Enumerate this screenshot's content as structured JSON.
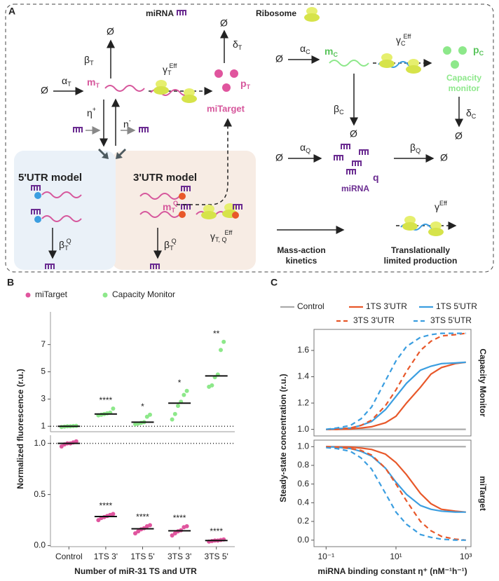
{
  "panels": [
    "A",
    "B",
    "C"
  ],
  "diagram": {
    "null_symbol": "Ø",
    "legend_mirna": "miRNA",
    "legend_ribosome": "Ribosome",
    "miTarget": "miTarget",
    "capacity_monitor": [
      "Capacity",
      "monitor"
    ],
    "utr5_model": "5'UTR model",
    "utr3_model": "3'UTR model",
    "mirna_label": "miRNA",
    "mass_action": [
      "Mass-action",
      "kinetics"
    ],
    "translation_limited": [
      "Translationally",
      "limited production"
    ],
    "symbols": {
      "alpha_T": {
        "base": "α",
        "sub": "T"
      },
      "beta_T": {
        "base": "β",
        "sub": "T"
      },
      "m_T": {
        "base": "m",
        "sub": "T"
      },
      "gamma_T_eff": {
        "base": "γ",
        "sub": "T",
        "sup": "Eff"
      },
      "delta_T": {
        "base": "δ",
        "sub": "T"
      },
      "p_T": {
        "base": "p",
        "sub": "T"
      },
      "eta_plus": {
        "base": "η",
        "sup": "+"
      },
      "eta_minus": {
        "base": "η",
        "sup": "-"
      },
      "m_TQ": {
        "base": "m",
        "sub": "T",
        "sup": "Q"
      },
      "beta_TQ": {
        "base": "β",
        "sub": "T",
        "sup": "Q"
      },
      "gamma_TQ_eff": {
        "base": "γ",
        "sub": "T, Q",
        "sup": "Eff"
      },
      "alpha_C": {
        "base": "α",
        "sub": "C"
      },
      "m_C": {
        "base": "m",
        "sub": "C"
      },
      "gamma_C_eff": {
        "base": "γ",
        "sub": "C",
        "sup": "Eff"
      },
      "p_C": {
        "base": "p",
        "sub": "C"
      },
      "beta_C": {
        "base": "β",
        "sub": "C"
      },
      "delta_C": {
        "base": "δ",
        "sub": "C"
      },
      "alpha_Q": {
        "base": "α",
        "sub": "Q"
      },
      "beta_Q": {
        "base": "β",
        "sub": "Q"
      },
      "q": {
        "base": "q"
      },
      "gamma_eff": {
        "base": "γ",
        "sup": "Eff"
      }
    }
  },
  "chart_data": [
    {
      "type": "strip",
      "y_label": "Normalized fluorescence (r.u.)",
      "ylim": [
        0.6,
        9.4
      ],
      "yticks": [
        1,
        3,
        5,
        7
      ],
      "hline": 1,
      "series": [
        {
          "name": "Capacity Monitor",
          "color": "#8de88a",
          "replicates": [
            [
              0.95,
              0.97,
              1.0,
              1.0,
              1.02,
              1.03
            ],
            [
              1.8,
              1.85,
              1.9,
              1.95,
              2.0,
              2.3
            ],
            [
              1.15,
              1.2,
              1.25,
              1.3,
              1.7,
              1.85
            ],
            [
              1.5,
              1.9,
              2.5,
              2.8,
              3.3,
              3.6
            ],
            [
              3.9,
              4.0,
              4.6,
              4.8,
              6.6,
              7.2
            ]
          ],
          "medians": [
            1.0,
            1.9,
            1.3,
            2.7,
            4.7
          ]
        }
      ],
      "annotations": [
        null,
        "****",
        "*",
        "*",
        "**"
      ]
    },
    {
      "type": "strip",
      "x_label": "Number of miR-31 TS and UTR",
      "categories": [
        "Control",
        "1TS 3'",
        "1TS 5'",
        "3TS 3'",
        "3TS 5'"
      ],
      "ylim": [
        -0.01,
        1.08
      ],
      "yticks": [
        {
          "value": 0,
          "label": "0.0"
        },
        {
          "value": 0.5,
          "label": "0.5"
        },
        {
          "value": 1,
          "label": "1.0"
        }
      ],
      "hline": 1,
      "series": [
        {
          "name": "miTarget",
          "color": "#e0559e",
          "replicates": [
            [
              0.97,
              0.99,
              1.0,
              1.0,
              1.01,
              1.02
            ],
            [
              0.25,
              0.27,
              0.28,
              0.29,
              0.3,
              0.31
            ],
            [
              0.12,
              0.14,
              0.16,
              0.17,
              0.19,
              0.2
            ],
            [
              0.1,
              0.12,
              0.14,
              0.15,
              0.18,
              0.19
            ],
            [
              0.04,
              0.045,
              0.05,
              0.05,
              0.055,
              0.06
            ]
          ],
          "medians": [
            1.0,
            0.285,
            0.165,
            0.145,
            0.05
          ]
        }
      ],
      "annotations": [
        null,
        "****",
        "****",
        "****",
        "****"
      ]
    },
    {
      "type": "line",
      "log_x": true,
      "y_label": "Steady-state concentration (r.u.)",
      "strip_label": "Capacity Monitor",
      "x": [
        0.1,
        0.2,
        0.5,
        1,
        2,
        5,
        10,
        20,
        50,
        100,
        200,
        500,
        1000
      ],
      "xlim": [
        0.045,
        1400
      ],
      "ylim": [
        0.95,
        1.76
      ],
      "yticks": [
        {
          "value": 1,
          "label": "1.0"
        },
        {
          "value": 1.2,
          "label": "1.2"
        },
        {
          "value": 1.4,
          "label": "1.4"
        },
        {
          "value": 1.6,
          "label": "1.6"
        }
      ],
      "series": [
        {
          "name": "Control",
          "color": "#aaaaaa",
          "style": "solid",
          "values": [
            1,
            1,
            1,
            1,
            1,
            1,
            1,
            1,
            1,
            1,
            1,
            1,
            1
          ]
        },
        {
          "name": "1TS 3'UTR",
          "color": "#e8582a",
          "style": "solid",
          "values": [
            1.0,
            1.0,
            1.003,
            1.01,
            1.02,
            1.05,
            1.1,
            1.2,
            1.32,
            1.42,
            1.47,
            1.5,
            1.51
          ]
        },
        {
          "name": "1TS 5'UTR",
          "color": "#3b9ee0",
          "style": "solid",
          "values": [
            1.0,
            1.005,
            1.01,
            1.03,
            1.06,
            1.15,
            1.25,
            1.35,
            1.45,
            1.48,
            1.5,
            1.505,
            1.51
          ]
        },
        {
          "name": "3TS 3'UTR",
          "color": "#e8582a",
          "style": "dashed",
          "values": [
            1.0,
            1.0,
            1.01,
            1.03,
            1.07,
            1.18,
            1.3,
            1.44,
            1.6,
            1.67,
            1.71,
            1.72,
            1.73
          ]
        },
        {
          "name": "3TS 5'UTR",
          "color": "#3b9ee0",
          "style": "dashed",
          "values": [
            1.0,
            1.01,
            1.03,
            1.08,
            1.17,
            1.37,
            1.52,
            1.63,
            1.7,
            1.72,
            1.73,
            1.73,
            1.73
          ]
        }
      ]
    },
    {
      "type": "line",
      "log_x": true,
      "x_label": "miRNA binding constant η⁺ (nM⁻¹h⁻¹)",
      "strip_label": "miTarget",
      "x": [
        0.1,
        0.2,
        0.5,
        1,
        2,
        5,
        10,
        20,
        50,
        100,
        200,
        500,
        1000
      ],
      "xlim": [
        0.045,
        1400
      ],
      "ylim": [
        -0.07,
        1.07
      ],
      "xticks": [
        {
          "value": 0.1,
          "label": "10⁻¹"
        },
        {
          "value": 10,
          "label": "10¹"
        },
        {
          "value": 1000,
          "label": "10³"
        }
      ],
      "yticks": [
        {
          "value": 0,
          "label": "0.0"
        },
        {
          "value": 0.2,
          "label": "0.2"
        },
        {
          "value": 0.4,
          "label": "0.4"
        },
        {
          "value": 0.6,
          "label": "0.6"
        },
        {
          "value": 0.8,
          "label": "0.8"
        },
        {
          "value": 1,
          "label": "1.0"
        }
      ],
      "series": [
        {
          "name": "Control",
          "color": "#aaaaaa",
          "style": "solid",
          "values": [
            1,
            1,
            1,
            1,
            1,
            1,
            1,
            1,
            1,
            1,
            1,
            1,
            1
          ]
        },
        {
          "name": "1TS 3'UTR",
          "color": "#e8582a",
          "style": "solid",
          "values": [
            1.0,
            0.998,
            0.995,
            0.985,
            0.97,
            0.92,
            0.83,
            0.7,
            0.5,
            0.39,
            0.33,
            0.31,
            0.3
          ]
        },
        {
          "name": "1TS 5'UTR",
          "color": "#3b9ee0",
          "style": "solid",
          "values": [
            1.0,
            0.995,
            0.98,
            0.95,
            0.9,
            0.77,
            0.62,
            0.49,
            0.37,
            0.33,
            0.31,
            0.3,
            0.3
          ]
        },
        {
          "name": "3TS 3'UTR",
          "color": "#e8582a",
          "style": "dashed",
          "values": [
            1.0,
            0.995,
            0.98,
            0.96,
            0.91,
            0.77,
            0.6,
            0.42,
            0.2,
            0.1,
            0.04,
            0.01,
            0.0
          ]
        },
        {
          "name": "3TS 5'UTR",
          "color": "#3b9ee0",
          "style": "dashed",
          "values": [
            0.99,
            0.98,
            0.95,
            0.88,
            0.76,
            0.5,
            0.3,
            0.17,
            0.06,
            0.03,
            0.01,
            0.0,
            0.0
          ]
        }
      ]
    }
  ]
}
